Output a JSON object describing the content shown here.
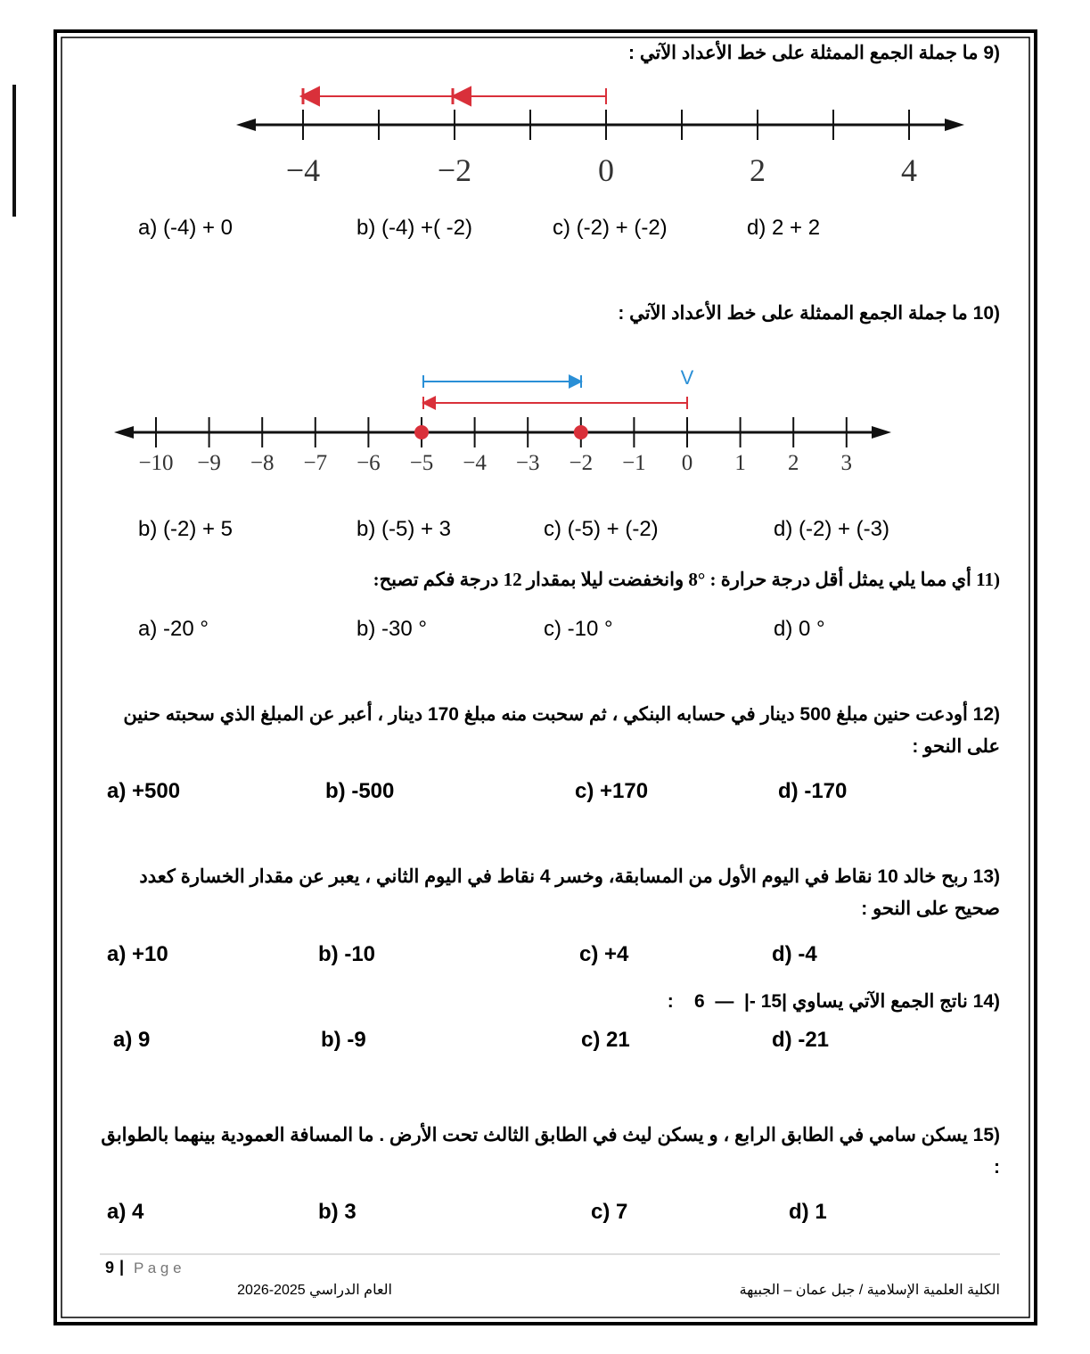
{
  "questions": [
    {
      "number": "9)",
      "text": "ما جملة الجمع الممثلة على خط الأعداد الآتي :",
      "number_line": {
        "labels": [
          "−4",
          "−2",
          "0",
          "2",
          "4"
        ]
      },
      "options": [
        "a)  (-4) + 0",
        "b) (-4) +( -2)",
        "c)  (-2) + (-2)",
        "d) 2 + 2"
      ]
    },
    {
      "number": "10)",
      "text": "ما جملة الجمع الممثلة على خط الأعداد الآتي :",
      "number_line": {
        "labels": [
          "−10",
          "−9",
          "−8",
          "−7",
          "−6",
          "−5",
          "−4",
          "−3",
          "−2",
          "−1",
          "0",
          "1",
          "2",
          "3"
        ],
        "marker": "V"
      },
      "options": [
        "b)  (-2) + 5",
        "b) (-5) + 3",
        "c)  (-5) + (-2)",
        "d) (-2) + (-3)"
      ]
    },
    {
      "number": "11)",
      "text": "أي مما يلي يمثل أقل درجة حرارة : °8  وانخفضت ليلا  بمقدار 12 درجة فكم تصبح:",
      "options": [
        "a)  -20 °",
        "b) -30 °",
        "c) -10 °",
        "d) 0 °"
      ]
    },
    {
      "number": "12)",
      "text": "أودعت حنين مبلغ 500 دينار في حسابه البنكي ، ثم سحبت منه مبلغ 170 دينار ، أعبر عن المبلغ الذي سحبته حنين على النحو :",
      "options": [
        "a) +500",
        "b) -500",
        "c) +170",
        "d)  -170"
      ]
    },
    {
      "number": "13)",
      "text": "ربح خالد 10 نقاط في اليوم الأول من المسابقة، وخسر 4 نقاط في اليوم الثاني ، يعبر عن مقدار الخسارة كعدد صحيح على النحو :",
      "options": [
        "a) +10",
        "b) -10",
        "c) +4",
        "d)  -4"
      ]
    },
    {
      "number": "14)",
      "text": "ناتج الجمع الآتي يساوي",
      "expression": ":    6  —  |- 15|",
      "options": [
        "a) 9",
        "b) -9",
        "c) 21",
        "d)  -21"
      ]
    },
    {
      "number": "15)",
      "text": "يسكن سامي في الطابق الرابع ، و يسكن ليث في الطابق الثالث تحت الأرض . ما المسافة العمودية بينهما بالطوابق :",
      "options": [
        "a) 4",
        "b) 3",
        "c) 7",
        "d)  1"
      ]
    }
  ],
  "footer": {
    "page_number": "9",
    "separator": "|",
    "page_label": "P a g e",
    "academic_year": "العام الدراسي 2025-2026",
    "school": "الكلية العلمية الإسلامية / جبل عمان – الجبيهة"
  }
}
